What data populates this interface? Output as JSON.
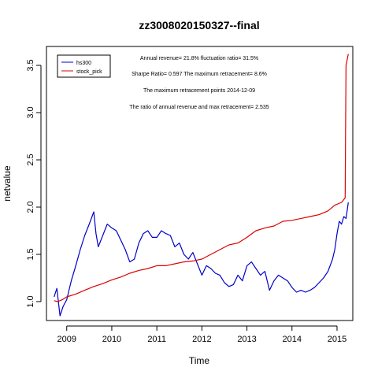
{
  "chart_data": {
    "type": "line",
    "title": "zz3008020150327--final",
    "xlabel": "Time",
    "ylabel": "netvalue",
    "xlim": [
      2008.55,
      2015.35
    ],
    "ylim": [
      0.8,
      3.7
    ],
    "x_ticks": [
      2009,
      2010,
      2011,
      2012,
      2013,
      2014,
      2015
    ],
    "x_tick_labels": [
      "2009",
      "2010",
      "2011",
      "2012",
      "2013",
      "2014",
      "2015"
    ],
    "y_ticks": [
      1.0,
      1.5,
      2.0,
      2.5,
      3.0,
      3.5
    ],
    "y_tick_labels": [
      "1.0",
      "1.5",
      "2.0",
      "2.5",
      "3.0",
      "3.5"
    ],
    "legend_position": "top-left",
    "annotations": [
      "Annual revenue=  21.8% fluctuation ratio= 31.5%",
      "Sharpe Ratio= 0.597 The maximum retracement= 8.6%",
      "The maximum retracement points 2014-12-09",
      "The ratio of annual revenue and max retracement= 2.535"
    ],
    "series": [
      {
        "name": "hs300",
        "color": "#0000cc",
        "x": [
          2008.72,
          2008.78,
          2008.85,
          2008.92,
          2009.0,
          2009.1,
          2009.2,
          2009.3,
          2009.4,
          2009.5,
          2009.6,
          2009.65,
          2009.7,
          2009.8,
          2009.9,
          2010.0,
          2010.1,
          2010.2,
          2010.3,
          2010.4,
          2010.5,
          2010.6,
          2010.7,
          2010.8,
          2010.9,
          2011.0,
          2011.1,
          2011.2,
          2011.3,
          2011.4,
          2011.5,
          2011.6,
          2011.7,
          2011.8,
          2011.9,
          2012.0,
          2012.1,
          2012.2,
          2012.3,
          2012.4,
          2012.5,
          2012.6,
          2012.7,
          2012.8,
          2012.9,
          2013.0,
          2013.1,
          2013.2,
          2013.3,
          2013.4,
          2013.5,
          2013.6,
          2013.7,
          2013.8,
          2013.9,
          2014.0,
          2014.1,
          2014.2,
          2014.3,
          2014.4,
          2014.5,
          2014.6,
          2014.7,
          2014.8,
          2014.9,
          2014.95,
          2015.0,
          2015.05,
          2015.1,
          2015.15,
          2015.2,
          2015.25
        ],
        "values": [
          1.05,
          1.14,
          0.85,
          0.95,
          1.02,
          1.22,
          1.38,
          1.55,
          1.7,
          1.82,
          1.95,
          1.72,
          1.58,
          1.7,
          1.82,
          1.78,
          1.75,
          1.65,
          1.55,
          1.42,
          1.45,
          1.62,
          1.72,
          1.75,
          1.68,
          1.68,
          1.75,
          1.72,
          1.7,
          1.58,
          1.62,
          1.5,
          1.45,
          1.52,
          1.4,
          1.28,
          1.38,
          1.35,
          1.3,
          1.28,
          1.2,
          1.16,
          1.18,
          1.28,
          1.22,
          1.38,
          1.42,
          1.35,
          1.28,
          1.32,
          1.12,
          1.22,
          1.28,
          1.25,
          1.22,
          1.15,
          1.1,
          1.12,
          1.1,
          1.12,
          1.15,
          1.2,
          1.25,
          1.32,
          1.45,
          1.55,
          1.72,
          1.85,
          1.82,
          1.9,
          1.88,
          2.05
        ]
      },
      {
        "name": "stock_pick",
        "color": "#dd0000",
        "x": [
          2008.72,
          2008.8,
          2008.9,
          2009.0,
          2009.2,
          2009.4,
          2009.6,
          2009.8,
          2010.0,
          2010.2,
          2010.4,
          2010.6,
          2010.8,
          2011.0,
          2011.2,
          2011.4,
          2011.6,
          2011.8,
          2012.0,
          2012.2,
          2012.4,
          2012.6,
          2012.8,
          2013.0,
          2013.2,
          2013.4,
          2013.6,
          2013.8,
          2014.0,
          2014.2,
          2014.4,
          2014.6,
          2014.8,
          2014.95,
          2015.1,
          2015.15,
          2015.18,
          2015.19,
          2015.2,
          2015.22,
          2015.25
        ],
        "values": [
          1.01,
          1.0,
          1.02,
          1.05,
          1.08,
          1.12,
          1.16,
          1.19,
          1.23,
          1.26,
          1.3,
          1.33,
          1.35,
          1.38,
          1.38,
          1.4,
          1.42,
          1.43,
          1.45,
          1.5,
          1.55,
          1.6,
          1.62,
          1.68,
          1.75,
          1.78,
          1.8,
          1.85,
          1.86,
          1.88,
          1.9,
          1.92,
          1.96,
          2.02,
          2.05,
          2.08,
          2.1,
          2.8,
          3.5,
          3.55,
          3.62
        ]
      }
    ]
  }
}
